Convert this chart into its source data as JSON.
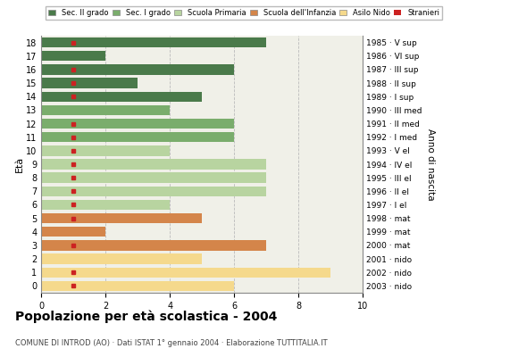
{
  "title": "Popolazione per età scolastica - 2004",
  "subtitle": "COMUNE DI INTROD (AO) · Dati ISTAT 1° gennaio 2004 · Elaborazione TUTTITALIA.IT",
  "ylabel_left": "Età",
  "ylabel_right": "Anno di nascita",
  "ages": [
    18,
    17,
    16,
    15,
    14,
    13,
    12,
    11,
    10,
    9,
    8,
    7,
    6,
    5,
    4,
    3,
    2,
    1,
    0
  ],
  "anno_nascita": [
    "1985 · V sup",
    "1986 · VI sup",
    "1987 · III sup",
    "1988 · II sup",
    "1989 · I sup",
    "1990 · III med",
    "1991 · II med",
    "1992 · I med",
    "1993 · V el",
    "1994 · IV el",
    "1995 · III el",
    "1996 · II el",
    "1997 · I el",
    "1998 · mat",
    "1999 · mat",
    "2000 · mat",
    "2001 · nido",
    "2002 · nido",
    "2003 · nido"
  ],
  "bar_values": [
    7,
    2,
    6,
    3,
    5,
    4,
    6,
    6,
    4,
    7,
    7,
    7,
    4,
    5,
    2,
    7,
    5,
    9,
    6
  ],
  "stranieri": [
    1,
    0,
    1,
    1,
    1,
    0,
    1,
    1,
    1,
    1,
    1,
    1,
    1,
    1,
    0,
    1,
    0,
    1,
    1
  ],
  "bar_colors": {
    "sec2": "#4a7a4a",
    "sec1": "#7aad6c",
    "primaria": "#b8d4a0",
    "infanzia": "#d4854a",
    "nido": "#f5d98c"
  },
  "category_per_age": [
    0,
    0,
    0,
    0,
    0,
    1,
    1,
    1,
    2,
    2,
    2,
    2,
    2,
    3,
    3,
    3,
    4,
    4,
    4
  ],
  "legend_labels": [
    "Sec. II grado",
    "Sec. I grado",
    "Scuola Primaria",
    "Scuola dell'Infanzia",
    "Asilo Nido",
    "Stranieri"
  ],
  "legend_colors": [
    "#4a7a4a",
    "#7aad6c",
    "#b8d4a0",
    "#d4854a",
    "#f5d98c",
    "#cc2222"
  ],
  "xlim": [
    0,
    10
  ],
  "xticks": [
    0,
    2,
    4,
    6,
    8,
    10
  ],
  "bg_color": "#f0f0e8",
  "grid_color": "#bbbbbb"
}
